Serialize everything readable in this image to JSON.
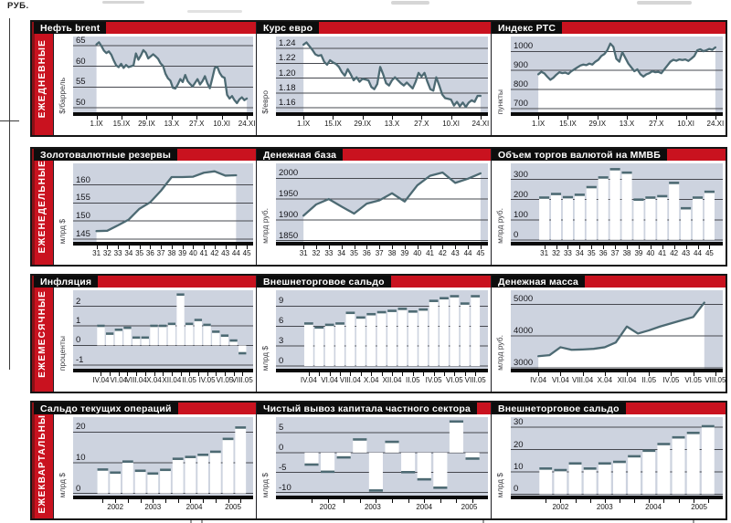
{
  "page": {
    "corner_label": "РУБ."
  },
  "colors": {
    "accent_red": "#c9121f",
    "band_shade": "#8c1016",
    "plot_bg": "#cdd3df",
    "data_color": "#4d6a73",
    "frame_black": "#151515"
  },
  "chart_data": {
    "rows": [
      {
        "id": "daily",
        "label": "ЕЖЕДНЕВНЫЕ",
        "charts": [
          {
            "id": "chart-brent-oil",
            "type": "line",
            "title": "Нефть brent",
            "unit": "$/баррель",
            "grid": [
              "50",
              "55",
              "60",
              "65"
            ],
            "ymin": 48,
            "ymax": 67.2,
            "xlabels": [
              "1.IX",
              "15.IX",
              "29.IX",
              "13.X",
              "27.X",
              "10.XI",
              "24.XI"
            ],
            "values": [
              65.3,
              65.8,
              64.9,
              63.8,
              63.2,
              63.6,
              62.8,
              61.4,
              60.2,
              59.8,
              60.6,
              59.6,
              60.3,
              59.8,
              60.0,
              60.2,
              63.1,
              61.6,
              62.6,
              63.9,
              63.3,
              61.9,
              62.4,
              62.9,
              62.4,
              61.8,
              60.7,
              60.1,
              58.2,
              57.1,
              56.5,
              54.8,
              54.6,
              55.6,
              56.9,
              56.2,
              57.9,
              56.4,
              55.7,
              55.1,
              56.0,
              56.9,
              55.6,
              56.4,
              57.6,
              55.9,
              54.7,
              57.1,
              59.6,
              59.9,
              58.4,
              57.5,
              57.2,
              53.1,
              52.2,
              52.8,
              51.8,
              51.1,
              52.0,
              52.5,
              51.8,
              52.2
            ]
          },
          {
            "id": "chart-euro-rate",
            "type": "line",
            "title": "Курс евро",
            "unit": "$/евро",
            "grid": [
              "1.16",
              "1.18",
              "1.20",
              "1.22",
              "1.24"
            ],
            "ymin": 1.149,
            "ymax": 1.256,
            "xlabels": [
              "1.IX",
              "15.IX",
              "29.IX",
              "13.X",
              "27.X",
              "10.XI",
              "24.XI"
            ],
            "values": [
              1.245,
              1.248,
              1.243,
              1.238,
              1.232,
              1.23,
              1.231,
              1.222,
              1.218,
              1.224,
              1.221,
              1.219,
              1.215,
              1.208,
              1.203,
              1.212,
              1.205,
              1.197,
              1.201,
              1.195,
              1.199,
              1.198,
              1.197,
              1.188,
              1.185,
              1.192,
              1.215,
              1.205,
              1.193,
              1.19,
              1.197,
              1.201,
              1.197,
              1.193,
              1.19,
              1.194,
              1.19,
              1.186,
              1.195,
              1.207,
              1.202,
              1.207,
              1.195,
              1.185,
              1.183,
              1.201,
              1.19,
              1.178,
              1.173,
              1.172,
              1.171,
              1.163,
              1.168,
              1.162,
              1.167,
              1.161,
              1.167,
              1.17,
              1.168,
              1.176,
              1.176
            ]
          },
          {
            "id": "chart-rts-index",
            "type": "line",
            "title": "Индекс РТС",
            "unit": "пункты",
            "grid": [
              "700",
              "800",
              "900",
              "1000"
            ],
            "ymin": 662,
            "ymax": 1078,
            "xlabels": [
              "1.IX",
              "15.IX",
              "29.IX",
              "13.X",
              "27.X",
              "10.XI",
              "24.XI"
            ],
            "values": [
              880,
              893,
              885,
              867,
              851,
              862,
              878,
              891,
              886,
              889,
              882,
              896,
              906,
              916,
              926,
              931,
              928,
              936,
              931,
              946,
              956,
              976,
              986,
              1006,
              1041,
              1024,
              961,
              946,
              996,
              966,
              936,
              916,
              896,
              906,
              881,
              868,
              880,
              886,
              896,
              891,
              893,
              886,
              906,
              926,
              946,
              956,
              951,
              958,
              955,
              958,
              950,
              962,
              976,
              1006,
              1011,
              1001,
              1006,
              1013,
              1008,
              1021
            ]
          }
        ]
      },
      {
        "id": "weekly",
        "label": "ЕЖЕНЕДЕЛЬНЫЕ",
        "charts": [
          {
            "id": "chart-gold-reserves",
            "type": "line",
            "title": "Золотовалютные резервы",
            "unit": "млрд $",
            "grid": [
              "145",
              "150",
              "155",
              "160"
            ],
            "ymin": 143.2,
            "ymax": 166,
            "xlabels": [
              "31",
              "32",
              "33",
              "34",
              "35",
              "36",
              "37",
              "38",
              "39",
              "40",
              "41",
              "42",
              "43",
              "44",
              "45"
            ],
            "denom": 14,
            "values": [
              147.2,
              147.3,
              148.8,
              150.4,
              153.4,
              155.2,
              158.4,
              162.2,
              162.2,
              162.3,
              163.4,
              163.8,
              162.6,
              162.7
            ]
          },
          {
            "id": "chart-monetary-base",
            "type": "line",
            "title": "Денежная база",
            "unit": "млрд руб.",
            "grid": [
              "1850",
              "1900",
              "1950",
              "2000"
            ],
            "ymin": 1838,
            "ymax": 2036,
            "xlabels": [
              "31",
              "32",
              "33",
              "34",
              "35",
              "36",
              "37",
              "38",
              "39",
              "40",
              "41",
              "42",
              "43",
              "44",
              "45"
            ],
            "denom": 14,
            "values": [
              1910,
              1937,
              1950,
              1932,
              1915,
              1939,
              1947,
              1964,
              1944,
              1983,
              2006,
              2014,
              1989,
              1999,
              2012
            ]
          },
          {
            "id": "chart-micex-fx-volume",
            "type": "bar",
            "title": "Объем торгов валютой на ММВБ",
            "unit": "млрд руб.",
            "grid": [
              "0",
              "100",
              "200",
              "300"
            ],
            "ymin": -28,
            "ymax": 380,
            "xlabels": [
              "31",
              "32",
              "33",
              "34",
              "35",
              "36",
              "37",
              "38",
              "39",
              "40",
              "41",
              "42",
              "43",
              "44",
              "45"
            ],
            "values": [
              210,
              228,
              212,
              224,
              262,
              310,
              351,
              334,
              200,
              210,
              217,
              283,
              157,
              210,
              239
            ]
          }
        ]
      },
      {
        "id": "monthly",
        "label": "ЕЖЕМЕСЯЧНЫЕ",
        "charts": [
          {
            "id": "chart-inflation",
            "type": "bar",
            "title": "Инфляция",
            "unit": "проценты",
            "grid": [
              "-1",
              "0",
              "1",
              "2"
            ],
            "ymin": -1.38,
            "ymax": 2.82,
            "xlabels": [
              "IV.04",
              "VI.04",
              "VIII.04",
              "X.04",
              "XII.04",
              "II.05",
              "IV.05",
              "VI.05",
              "VIII.05"
            ],
            "label_slots": [
              0,
              2,
              4,
              6,
              8,
              10,
              12,
              14,
              16
            ],
            "values": [
              1.0,
              0.6,
              0.8,
              0.9,
              0.4,
              0.4,
              1.0,
              1.0,
              1.1,
              2.6,
              1.1,
              1.3,
              1.05,
              0.7,
              0.5,
              0.25,
              -0.4
            ]
          },
          {
            "id": "chart-trade-balance-monthly",
            "type": "bar",
            "title": "Внешнеторговое сальдо",
            "unit": "млрд $",
            "grid": [
              "0",
              "3",
              "6",
              "9"
            ],
            "ymin": -0.95,
            "ymax": 11.4,
            "xlabels": [
              "IV.04",
              "VI.04",
              "VIII.04",
              "X.04",
              "XII.04",
              "II.05",
              "IV.05",
              "VI.05",
              "VIII.05"
            ],
            "label_slots": [
              0,
              2,
              4,
              6,
              8,
              10,
              12,
              14,
              16
            ],
            "values": [
              6.4,
              5.8,
              6.2,
              6.4,
              8.0,
              7.3,
              7.8,
              8.1,
              8.3,
              8.6,
              8.2,
              8.5,
              9.8,
              10.2,
              10.5,
              9.4,
              10.5
            ]
          },
          {
            "id": "chart-money-supply",
            "type": "line",
            "title": "Денежная масса",
            "unit": "млрд руб.",
            "grid": [
              "3000",
              "4000",
              "5000"
            ],
            "ymin": 2860,
            "ymax": 5440,
            "xlabels": [
              "IV.04",
              "VI.04",
              "VIII.04",
              "X.04",
              "XII.04",
              "II.05",
              "IV.05",
              "VI.05",
              "VIII.05"
            ],
            "denom": 16,
            "values": [
              3370,
              3400,
              3650,
              3570,
              3580,
              3600,
              3650,
              3800,
              4300,
              4080,
              4180,
              4300,
              4400,
              4500,
              4600,
              5050
            ]
          }
        ]
      },
      {
        "id": "quarterly",
        "label": "ЕЖЕКВАРТАЛЬНЫЕ",
        "charts": [
          {
            "id": "chart-current-account",
            "type": "bar",
            "title": "Сальдо текущих операций",
            "unit": "млрд $",
            "grid": [
              "0",
              "10",
              "20"
            ],
            "ymin": -1.9,
            "ymax": 24.9,
            "xlabels": [
              "2002",
              "2003",
              "2004",
              "2005"
            ],
            "label_slots": [
              1,
              4,
              7.3,
              10.4
            ],
            "values": [
              7.8,
              6.8,
              10.4,
              7.4,
              6.5,
              7.7,
              11.3,
              11.9,
              12.6,
              13.6,
              17.8,
              21.5
            ]
          },
          {
            "id": "chart-private-capital-outflow",
            "type": "bar",
            "title": "Чистый вывоз капитала частного сектора",
            "unit": "млрд $",
            "grid": [
              "-10",
              "-5",
              "0",
              "5"
            ],
            "ymin": -11.7,
            "ymax": 8.9,
            "xlabels": [
              "2002",
              "2003",
              "2004",
              "2005"
            ],
            "label_slots": [
              1,
              3.8,
              7,
              9.8
            ],
            "values": [
              -3.0,
              -4.8,
              -1.2,
              3.3,
              -9.5,
              2.7,
              -4.9,
              -6.7,
              -8.8,
              7.8,
              -1.5
            ]
          },
          {
            "id": "chart-trade-balance-quarterly",
            "type": "bar",
            "title": "Внешнеторговое сальдо",
            "unit": "млрд $",
            "grid": [
              "0",
              "10",
              "20",
              "30"
            ],
            "ymin": -2.3,
            "ymax": 34.6,
            "xlabels": [
              "2002",
              "2003",
              "2004",
              "2005"
            ],
            "label_slots": [
              1,
              4,
              7.3,
              10.4
            ],
            "values": [
              11.5,
              10.8,
              13.8,
              11.5,
              13.8,
              14.5,
              17.0,
              19.5,
              22.5,
              25.5,
              27.5,
              30.5
            ]
          }
        ]
      }
    ]
  }
}
